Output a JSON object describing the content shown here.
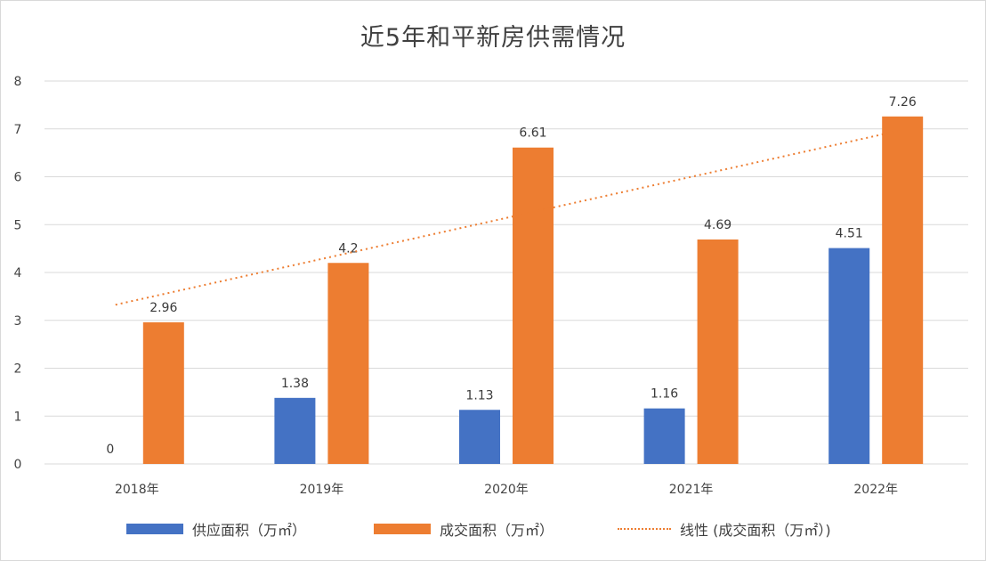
{
  "chart_data": {
    "type": "bar",
    "title": "近5年和平新房供需情况",
    "categories": [
      "2018年",
      "2019年",
      "2020年",
      "2021年",
      "2022年"
    ],
    "series": [
      {
        "name": "供应面积（万㎡）",
        "values": [
          0,
          1.38,
          1.13,
          1.16,
          4.51
        ],
        "color": "#4472c4",
        "labels": [
          "0",
          "1.38",
          "1.13",
          "1.16",
          "4.51"
        ]
      },
      {
        "name": "成交面积（万㎡）",
        "values": [
          2.96,
          4.2,
          6.61,
          4.69,
          7.26
        ],
        "color": "#ed7d31",
        "labels": [
          "2.96",
          "4.2",
          "6.61",
          "4.69",
          "7.26"
        ]
      }
    ],
    "trendline": {
      "name": "线性 (成交面积（万㎡）)",
      "series": "成交面积（万㎡）",
      "type": "linear",
      "color": "#ed7d31",
      "style": "dotted"
    },
    "yticks": [
      "0",
      "1",
      "2",
      "3",
      "4",
      "5",
      "6",
      "7",
      "8"
    ],
    "ylim": [
      0,
      8
    ],
    "grid": true,
    "legend_position": "bottom"
  }
}
